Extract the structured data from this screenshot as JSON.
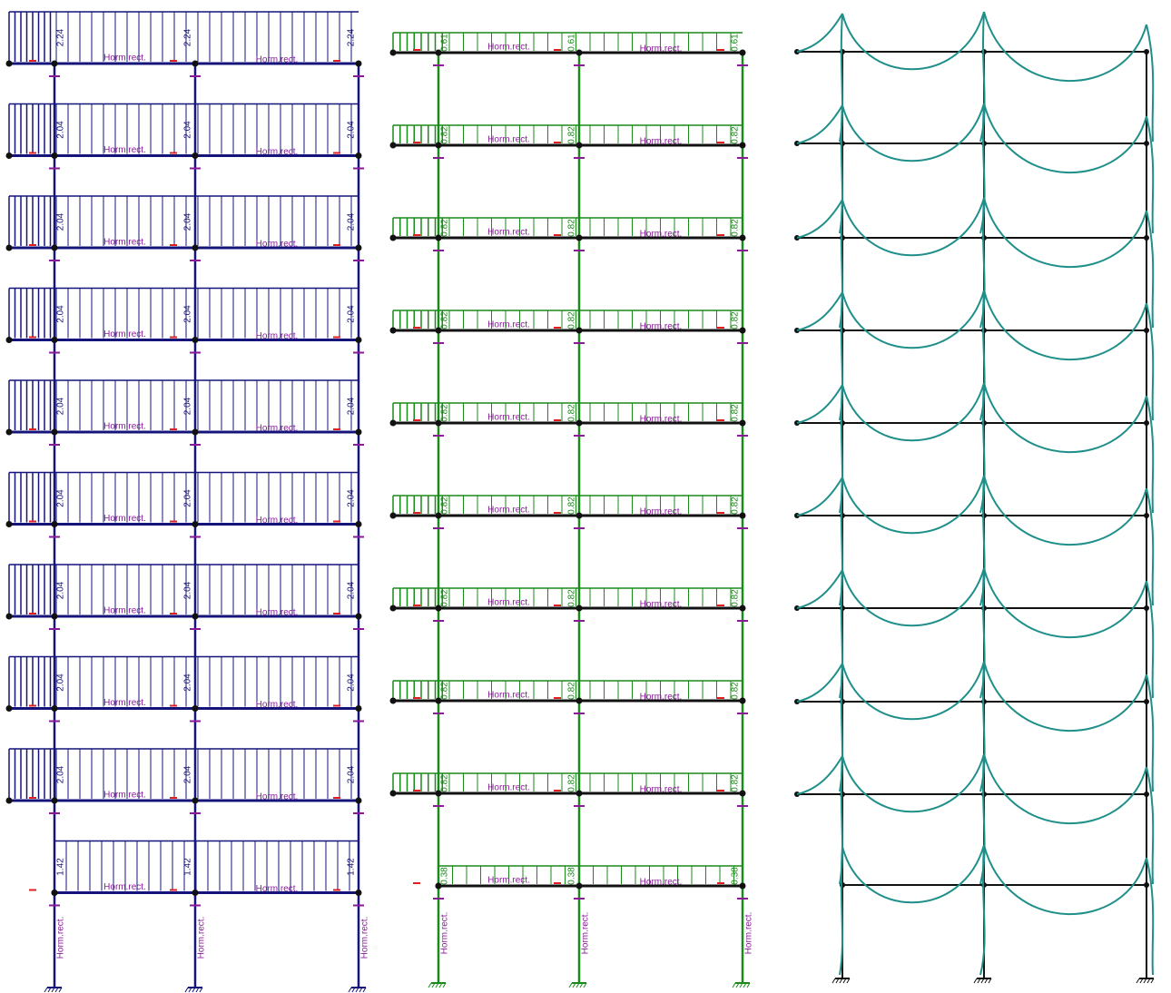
{
  "section_label": "Horm.rect.",
  "dead_load": {
    "floors": [
      "2.24",
      "2.04",
      "2.04",
      "2.04",
      "2.04",
      "2.04",
      "2.04",
      "2.04",
      "2.04",
      "1.42"
    ]
  },
  "live_load": {
    "floors": [
      "0.61",
      "0.82",
      "0.82",
      "0.82",
      "0.82",
      "0.82",
      "0.82",
      "0.82",
      "0.82",
      "0.38"
    ]
  }
}
